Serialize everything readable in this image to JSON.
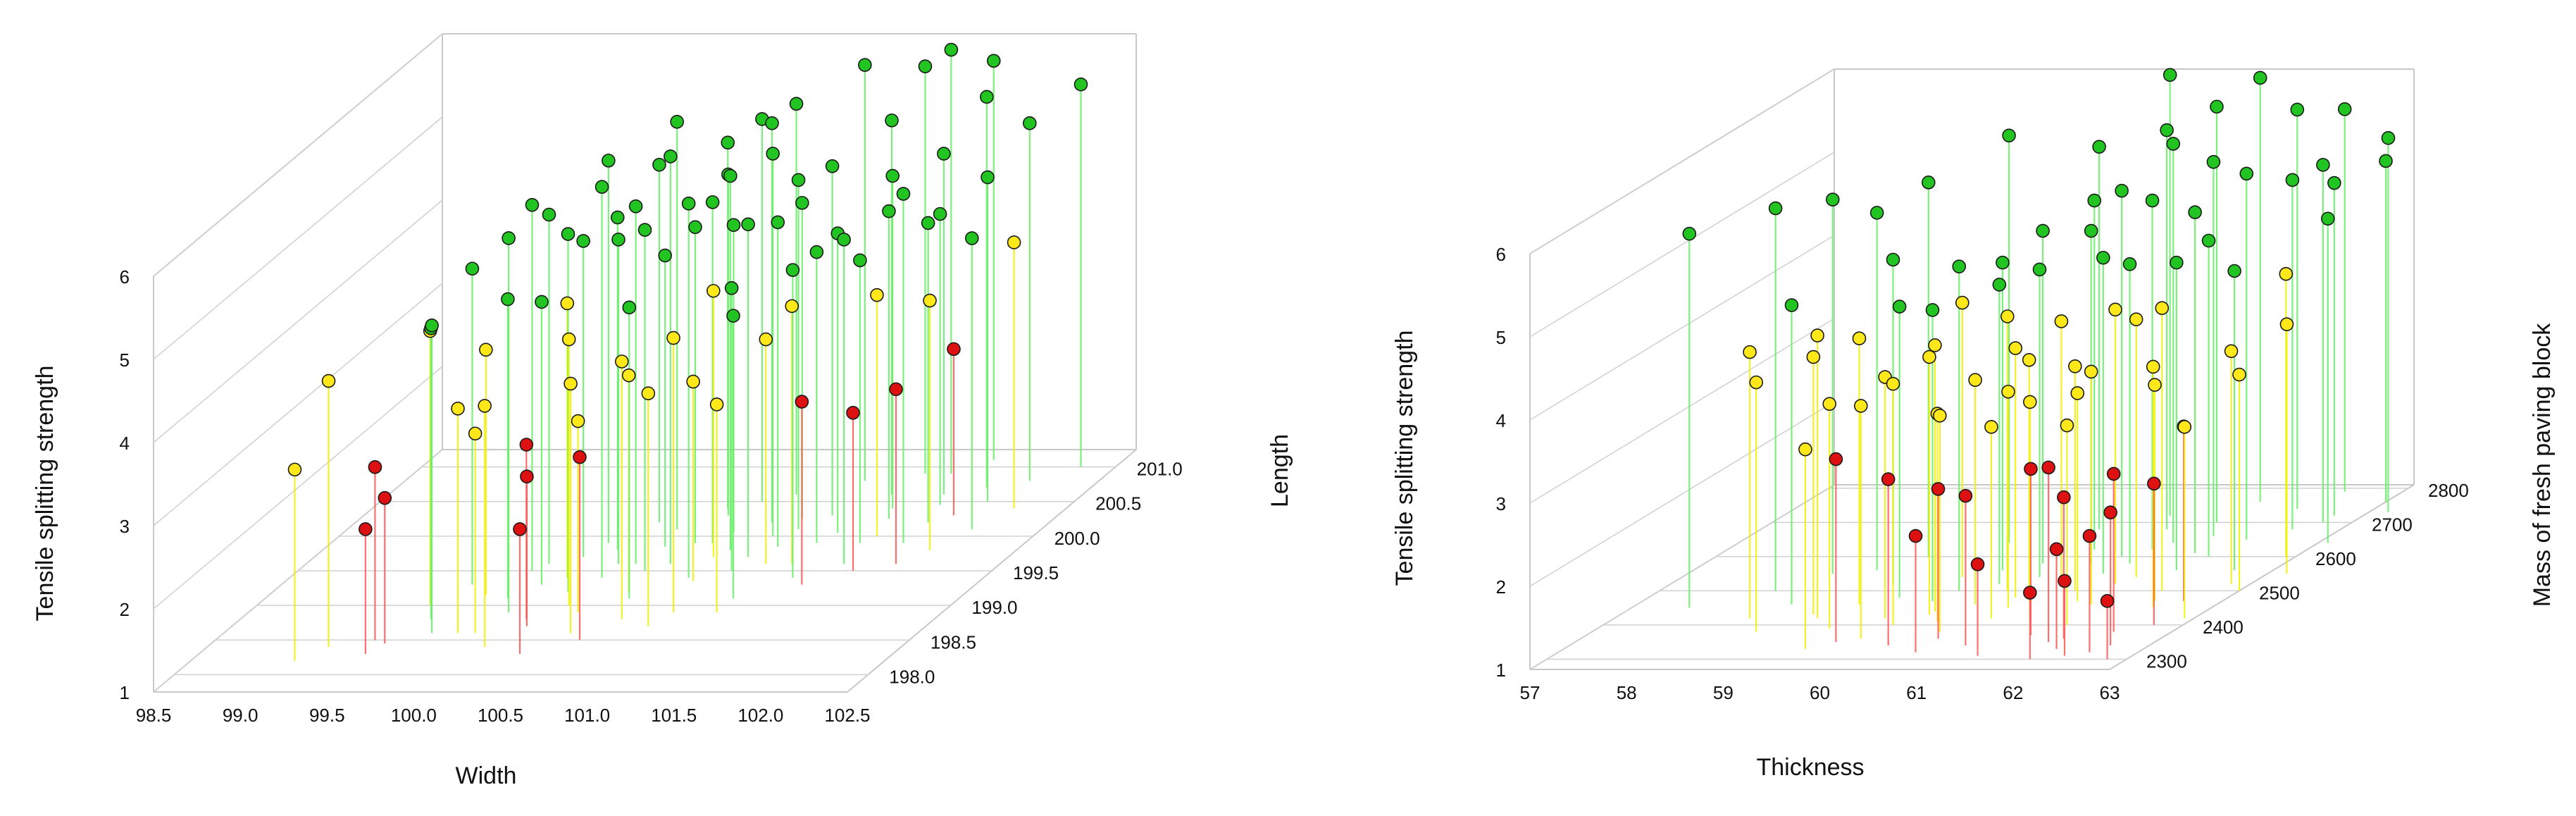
{
  "colors": {
    "high": "#22c422",
    "high_stem": "#66ee66",
    "mid": "#ffe81a",
    "mid_stem": "#f0f000",
    "low": "#dd1111",
    "low_stem": "#ff5555",
    "box": "#c8c8c8"
  },
  "chart_data": [
    {
      "type": "scatter3d",
      "xlabel": "Width",
      "ylabel": "Length",
      "zlabel": "Tensile splitting strength",
      "x_ticks": [
        "98.5",
        "99.0",
        "99.5",
        "100.0",
        "100.5",
        "101.0",
        "101.5",
        "102.0",
        "102.5"
      ],
      "y_ticks": [
        "198.0",
        "198.5",
        "199.0",
        "199.5",
        "200.0",
        "200.5",
        "201.0"
      ],
      "z_ticks": [
        "1",
        "2",
        "3",
        "4",
        "5",
        "6"
      ],
      "xlim": [
        98.5,
        102.5
      ],
      "ylim": [
        197.75,
        201.25
      ],
      "zlim": [
        1,
        6
      ],
      "color_groups": [
        {
          "name": "high",
          "z_min": 4.4
        },
        {
          "name": "mid",
          "z_min": 3.3
        },
        {
          "name": "low",
          "z_min": 0
        }
      ],
      "points": [
        [
          99.42,
          198.5,
          3.08
        ],
        [
          99.46,
          198.3,
          2.5
        ],
        [
          99.5,
          198.45,
          2.75
        ],
        [
          99.1,
          198.2,
          3.3
        ],
        [
          99.2,
          198.4,
          4.2
        ],
        [
          99.5,
          199.0,
          4.3
        ],
        [
          99.75,
          199.15,
          3.95
        ],
        [
          100.0,
          199.3,
          4.4
        ],
        [
          99.6,
          198.8,
          4.5
        ],
        [
          99.9,
          199.1,
          4.6
        ],
        [
          100.1,
          199.4,
          4.3
        ],
        [
          100.2,
          199.2,
          5.3
        ],
        [
          100.3,
          199.6,
          4.9
        ],
        [
          100.0,
          198.9,
          5.5
        ],
        [
          99.7,
          198.6,
          4.7
        ],
        [
          100.5,
          199.5,
          5.1
        ],
        [
          100.6,
          199.9,
          4.8
        ],
        [
          100.8,
          199.4,
          5.5
        ],
        [
          100.6,
          199.1,
          4.5
        ],
        [
          101.0,
          199.7,
          5.0
        ],
        [
          100.4,
          198.9,
          3.3
        ],
        [
          100.2,
          198.7,
          2.8
        ],
        [
          100.1,
          198.4,
          3.9
        ],
        [
          99.85,
          198.6,
          3.7
        ],
        [
          100.35,
          198.3,
          2.5
        ],
        [
          100.6,
          198.5,
          3.2
        ],
        [
          100.9,
          198.7,
          3.8
        ],
        [
          101.2,
          198.9,
          3.5
        ],
        [
          101.5,
          199.3,
          3.2
        ],
        [
          101.7,
          199.5,
          2.9
        ],
        [
          101.9,
          199.6,
          3.1
        ],
        [
          102.0,
          199.8,
          4.0
        ],
        [
          101.3,
          199.9,
          4.5
        ],
        [
          101.1,
          200.1,
          5.2
        ],
        [
          100.9,
          200.2,
          5.8
        ],
        [
          100.7,
          200.5,
          5.6
        ],
        [
          101.4,
          200.6,
          5.5
        ],
        [
          101.6,
          200.9,
          6.1
        ],
        [
          101.9,
          200.7,
          5.7
        ],
        [
          102.1,
          200.8,
          5.3
        ],
        [
          102.3,
          201.0,
          5.6
        ],
        [
          102.2,
          200.4,
          4.2
        ],
        [
          101.8,
          200.2,
          4.6
        ],
        [
          101.55,
          199.9,
          4.4
        ],
        [
          101.3,
          199.6,
          4.1
        ],
        [
          101.0,
          199.5,
          4.4
        ],
        [
          100.8,
          199.7,
          4.2
        ],
        [
          101.2,
          200.3,
          5.2
        ],
        [
          101.0,
          200.0,
          5.6
        ],
        [
          100.7,
          199.9,
          5.1
        ],
        [
          100.4,
          199.6,
          5.3
        ],
        [
          100.2,
          199.8,
          5.0
        ],
        [
          99.9,
          199.6,
          5.2
        ],
        [
          100.1,
          199.9,
          5.6
        ],
        [
          100.4,
          200.1,
          5.9
        ],
        [
          100.6,
          200.3,
          5.1
        ],
        [
          101.5,
          200.4,
          5.0
        ],
        [
          101.7,
          200.6,
          5.1
        ],
        [
          102.0,
          200.5,
          4.9
        ],
        [
          101.8,
          199.9,
          5.2
        ],
        [
          101.6,
          199.6,
          4.9
        ],
        [
          101.4,
          199.4,
          4.7
        ],
        [
          101.2,
          199.1,
          4.4
        ],
        [
          100.95,
          198.9,
          4.3
        ],
        [
          100.7,
          198.8,
          4.1
        ],
        [
          100.5,
          198.6,
          4.0
        ],
        [
          100.3,
          199.0,
          4.2
        ],
        [
          100.15,
          198.8,
          3.1
        ],
        [
          99.95,
          198.6,
          3.4
        ],
        [
          100.55,
          199.2,
          3.6
        ],
        [
          100.85,
          199.35,
          3.4
        ],
        [
          101.15,
          199.6,
          3.7
        ],
        [
          101.6,
          200.0,
          3.9
        ],
        [
          101.9,
          200.3,
          3.0
        ],
        [
          102.1,
          200.1,
          4.5
        ],
        [
          99.6,
          199.3,
          4.8
        ],
        [
          99.85,
          199.5,
          5.4
        ],
        [
          100.05,
          199.7,
          4.8
        ],
        [
          100.3,
          199.4,
          5.7
        ],
        [
          100.6,
          199.6,
          5.9
        ],
        [
          100.85,
          199.8,
          5.5
        ],
        [
          101.1,
          199.85,
          4.9
        ],
        [
          101.35,
          200.05,
          4.6
        ],
        [
          101.55,
          200.25,
          4.7
        ],
        [
          101.75,
          200.45,
          4.5
        ],
        [
          100.45,
          199.85,
          4.5
        ],
        [
          100.75,
          200.05,
          4.7
        ],
        [
          101.05,
          200.25,
          4.8
        ],
        [
          100.25,
          200.2,
          5.3
        ],
        [
          100.55,
          200.4,
          5.4
        ],
        [
          100.85,
          200.6,
          5.7
        ],
        [
          101.15,
          200.8,
          6.0
        ],
        [
          101.45,
          200.9,
          5.9
        ],
        [
          101.75,
          201.1,
          5.8
        ]
      ]
    },
    {
      "type": "scatter3d",
      "xlabel": "Thickness",
      "ylabel": "Mass of fresh paving block",
      "zlabel": "Tensile splitting strength",
      "x_ticks": [
        "57",
        "58",
        "59",
        "60",
        "61",
        "62",
        "63"
      ],
      "y_ticks": [
        "2300",
        "2400",
        "2500",
        "2600",
        "2700",
        "2800"
      ],
      "z_ticks": [
        "1",
        "2",
        "3",
        "4",
        "5",
        "6"
      ],
      "xlim": [
        57,
        63
      ],
      "ylim": [
        2270,
        2810
      ],
      "zlim": [
        1,
        6
      ],
      "color_groups": [
        {
          "name": "high",
          "z_min": 4.5
        },
        {
          "name": "mid",
          "z_min": 3.3
        },
        {
          "name": "low",
          "z_min": 0
        }
      ],
      "points": [
        [
          57.6,
          2450,
          5.5
        ],
        [
          58.2,
          2500,
          5.6
        ],
        [
          58.5,
          2550,
          5.5
        ],
        [
          58.7,
          2380,
          4.0
        ],
        [
          59.1,
          2420,
          4.4
        ],
        [
          59.3,
          2460,
          4.2
        ],
        [
          59.6,
          2480,
          4.5
        ],
        [
          59.7,
          2350,
          3.2
        ],
        [
          60.0,
          2400,
          3.9
        ],
        [
          60.2,
          2430,
          4.1
        ],
        [
          60.1,
          2500,
          4.9
        ],
        [
          60.4,
          2520,
          4.6
        ],
        [
          60.5,
          2460,
          3.7
        ],
        [
          60.6,
          2380,
          3.6
        ],
        [
          60.7,
          2360,
          2.8
        ],
        [
          60.9,
          2420,
          3.3
        ],
        [
          61.0,
          2470,
          3.9
        ],
        [
          61.1,
          2510,
          4.2
        ],
        [
          61.3,
          2550,
          4.8
        ],
        [
          61.2,
          2600,
          5.4
        ],
        [
          61.5,
          2640,
          5.8
        ],
        [
          61.4,
          2580,
          4.6
        ],
        [
          61.6,
          2520,
          4.3
        ],
        [
          61.7,
          2460,
          3.8
        ],
        [
          61.8,
          2400,
          3.4
        ],
        [
          62.0,
          2360,
          2.7
        ],
        [
          62.1,
          2330,
          2.2
        ],
        [
          62.3,
          2310,
          1.9
        ],
        [
          62.5,
          2320,
          2.4
        ],
        [
          62.6,
          2340,
          2.6
        ],
        [
          62.8,
          2300,
          1.7
        ],
        [
          62.9,
          2420,
          3.3
        ],
        [
          62.4,
          2450,
          3.9
        ],
        [
          62.2,
          2500,
          4.4
        ],
        [
          62.0,
          2560,
          4.7
        ],
        [
          61.9,
          2610,
          5.1
        ],
        [
          62.2,
          2650,
          5.4
        ],
        [
          62.5,
          2680,
          5.2
        ],
        [
          62.7,
          2720,
          5.0
        ],
        [
          63.0,
          2760,
          5.1
        ],
        [
          62.4,
          2790,
          5.6
        ],
        [
          61.6,
          2700,
          6.0
        ],
        [
          61.2,
          2680,
          5.8
        ],
        [
          60.8,
          2620,
          5.2
        ],
        [
          60.5,
          2580,
          5.0
        ],
        [
          60.2,
          2560,
          4.7
        ],
        [
          59.9,
          2540,
          4.3
        ],
        [
          60.8,
          2480,
          4.0
        ],
        [
          61.3,
          2420,
          3.6
        ],
        [
          61.6,
          2370,
          3.0
        ],
        [
          61.9,
          2350,
          3.1
        ],
        [
          62.4,
          2380,
          2.9
        ],
        [
          62.7,
          2400,
          2.7
        ],
        [
          61.1,
          2340,
          2.8
        ],
        [
          60.3,
          2340,
          3.0
        ],
        [
          59.5,
          2330,
          3.4
        ],
        [
          59.9,
          2360,
          3.8
        ],
        [
          60.2,
          2440,
          4.2
        ],
        [
          60.7,
          2540,
          4.7
        ],
        [
          61.0,
          2580,
          5.0
        ],
        [
          61.4,
          2620,
          5.2
        ],
        [
          61.8,
          2660,
          5.5
        ],
        [
          62.1,
          2600,
          4.8
        ],
        [
          62.6,
          2560,
          4.6
        ],
        [
          62.9,
          2600,
          4.4
        ],
        [
          63.1,
          2640,
          4.9
        ],
        [
          62.3,
          2470,
          3.6
        ],
        [
          61.5,
          2470,
          3.5
        ],
        [
          60.9,
          2450,
          3.6
        ],
        [
          60.4,
          2410,
          3.5
        ],
        [
          59.8,
          2420,
          3.9
        ],
        [
          59.4,
          2390,
          3.7
        ],
        [
          61.7,
          2540,
          4.1
        ],
        [
          61.3,
          2500,
          3.7
        ],
        [
          60.6,
          2500,
          4.3
        ],
        [
          60.0,
          2470,
          4.5
        ],
        [
          59.3,
          2520,
          4.9
        ],
        [
          58.9,
          2560,
          5.3
        ],
        [
          58.6,
          2460,
          4.6
        ],
        [
          59.2,
          2600,
          5.5
        ],
        [
          59.8,
          2640,
          5.9
        ],
        [
          60.5,
          2680,
          5.6
        ],
        [
          61.0,
          2720,
          6.3
        ],
        [
          61.7,
          2760,
          6.1
        ],
        [
          62.2,
          2740,
          5.8
        ],
        [
          62.7,
          2700,
          5.3
        ],
        [
          63.2,
          2730,
          5.5
        ],
        [
          58.4,
          2420,
          4.2
        ],
        [
          59.0,
          2430,
          4.1
        ],
        [
          60.7,
          2320,
          2.4
        ],
        [
          61.4,
          2310,
          2.1
        ],
        [
          62.0,
          2300,
          1.8
        ],
        [
          62.6,
          2470,
          3.1
        ],
        [
          63.0,
          2500,
          3.6
        ],
        [
          63.2,
          2550,
          4.0
        ],
        [
          62.8,
          2520,
          3.8
        ]
      ]
    }
  ]
}
